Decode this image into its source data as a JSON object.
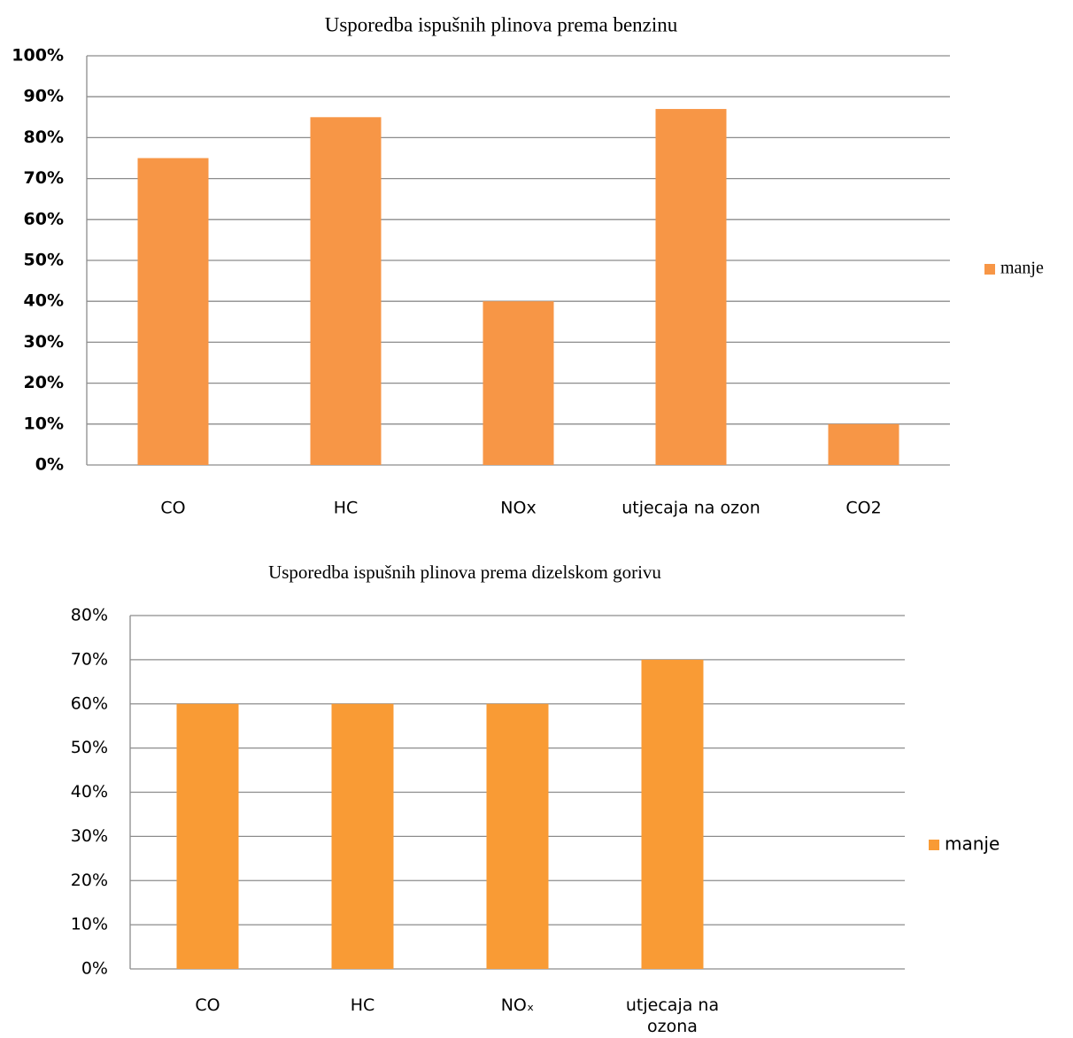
{
  "chart_data": [
    {
      "type": "bar",
      "title": "Usporedba ispušnih plinova prema benzinu",
      "categories": [
        "CO",
        "HC",
        "NOx",
        "utjecaja na  ozon",
        "CO2"
      ],
      "series": [
        {
          "name": "manje",
          "color": "#f79646",
          "values": [
            75,
            85,
            40,
            87,
            10
          ]
        }
      ],
      "ylim": [
        0,
        100
      ],
      "yticks": [
        {
          "value": 0,
          "label": "0%"
        },
        {
          "value": 10,
          "label": "10%"
        },
        {
          "value": 20,
          "label": "20%"
        },
        {
          "value": 30,
          "label": "30%"
        },
        {
          "value": 40,
          "label": "40%"
        },
        {
          "value": 50,
          "label": "50%"
        },
        {
          "value": 60,
          "label": "60%"
        },
        {
          "value": 70,
          "label": "70%"
        },
        {
          "value": 80,
          "label": "80%"
        },
        {
          "value": 90,
          "label": "90%"
        },
        {
          "value": 100,
          "label": "100%"
        }
      ],
      "grid": true,
      "legend": "right"
    },
    {
      "type": "bar",
      "title": "Usporedba ispušnih plinova prema dizelskom gorivu",
      "categories": [
        "CO",
        "HC",
        "NOₓ",
        "utjecaja na ozona",
        null
      ],
      "series": [
        {
          "name": "manje",
          "color": "#f99b35",
          "values": [
            60,
            60,
            60,
            70,
            null
          ]
        }
      ],
      "ylim": [
        0,
        80
      ],
      "yticks": [
        {
          "value": 0,
          "label": "0%"
        },
        {
          "value": 10,
          "label": "10%"
        },
        {
          "value": 20,
          "label": "20%"
        },
        {
          "value": 30,
          "label": "30%"
        },
        {
          "value": 40,
          "label": "40%"
        },
        {
          "value": 50,
          "label": "50%"
        },
        {
          "value": 60,
          "label": "60%"
        },
        {
          "value": 70,
          "label": "70%"
        },
        {
          "value": 80,
          "label": "80%"
        }
      ],
      "grid": true,
      "legend": "right"
    }
  ]
}
